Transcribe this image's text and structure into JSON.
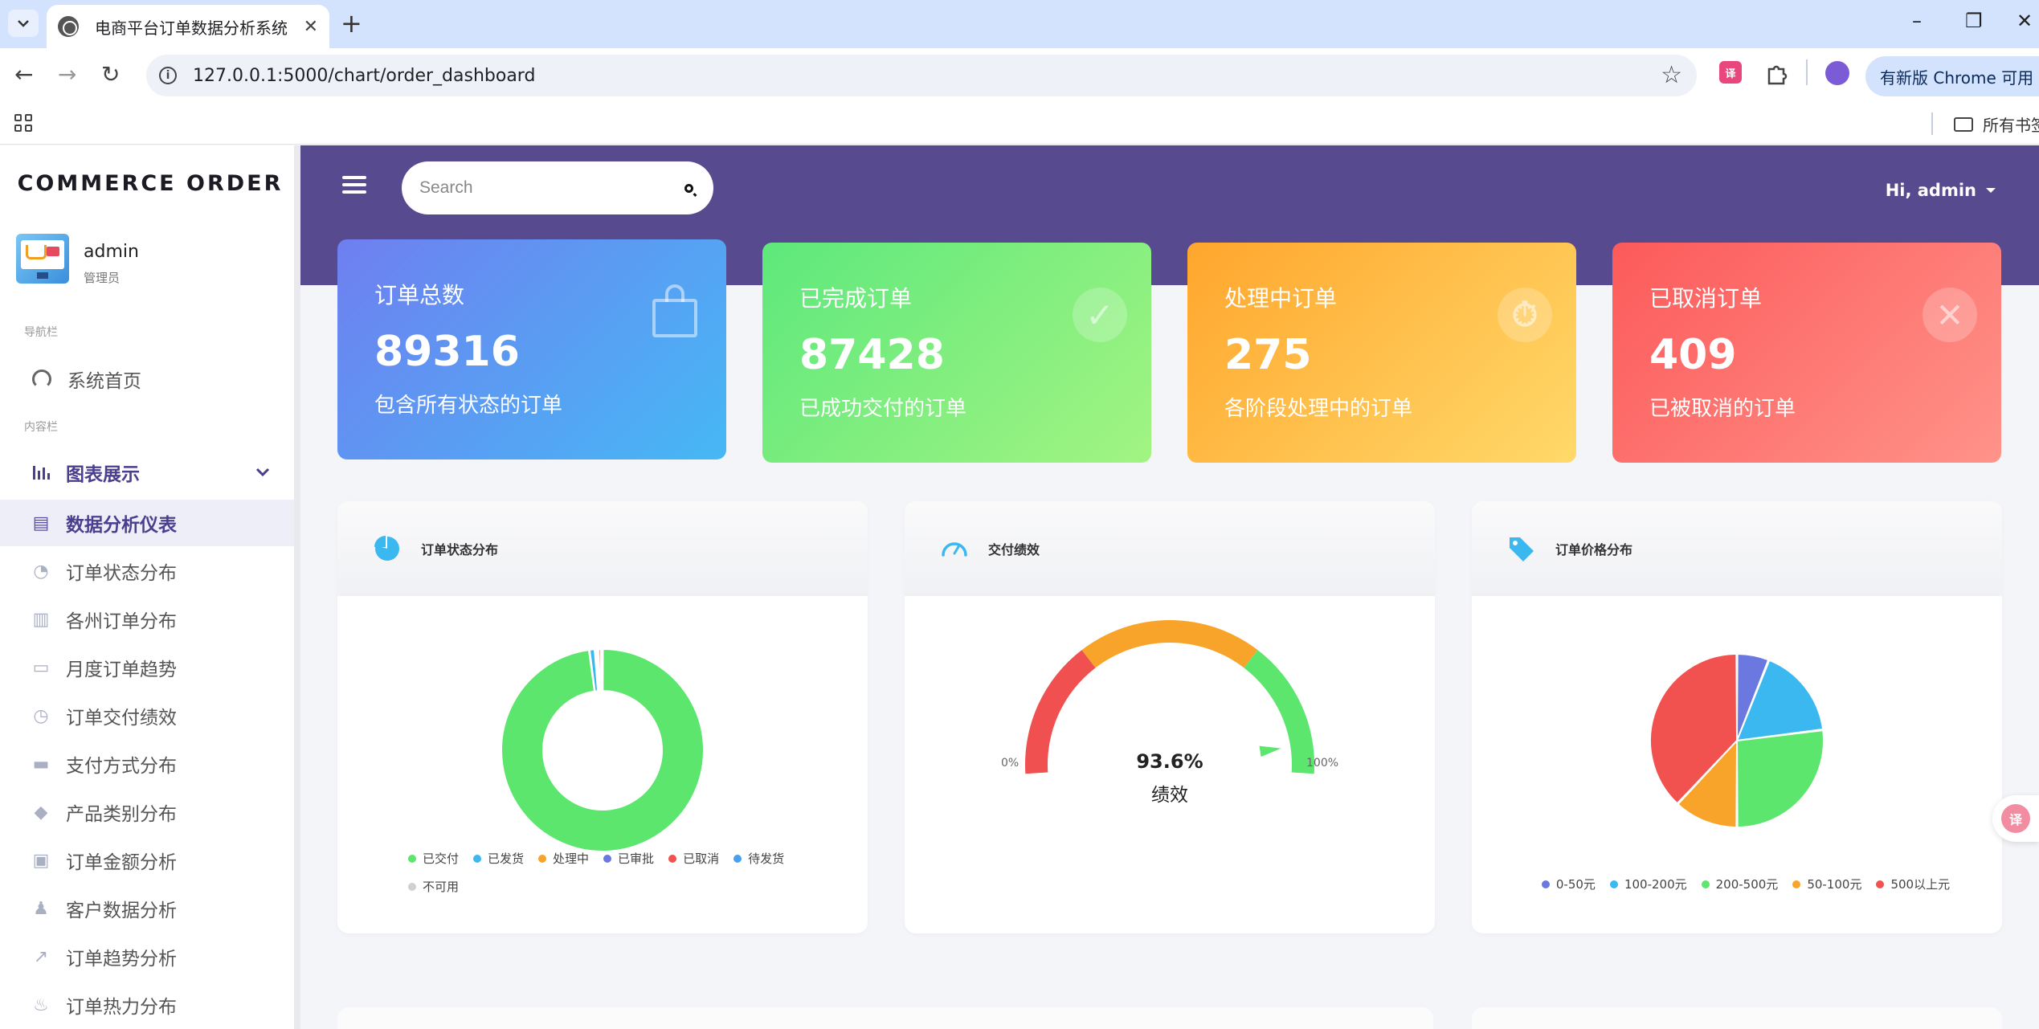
{
  "browser": {
    "tab_title": "电商平台订单数据分析系统",
    "tab_close": "✕",
    "new_tab": "+",
    "url": "127.0.0.1:5000/chart/order_dashboard",
    "update_label": "有新版 Chrome 可用",
    "bookmarks_folder": "所有书签",
    "minimize": "–",
    "restore": "❐",
    "close": "✕"
  },
  "sidebar": {
    "brand": "COMMERCE ORDER",
    "user": {
      "name": "admin",
      "role": "管理员"
    },
    "nav_section": "导航栏",
    "home": {
      "label": "系统首页",
      "icon": "dashboard-gauge-icon"
    },
    "content_section": "内容栏",
    "group": {
      "label": "图表展示",
      "icon": "bar-chart-icon",
      "expanded": true
    },
    "items": [
      {
        "label": "数据分析仪表",
        "icon": "document-icon",
        "active": true
      },
      {
        "label": "订单状态分布",
        "icon": "pie-chart-icon",
        "active": false
      },
      {
        "label": "各州订单分布",
        "icon": "map-icon",
        "active": false
      },
      {
        "label": "月度订单趋势",
        "icon": "calendar-icon",
        "active": false
      },
      {
        "label": "订单交付绩效",
        "icon": "stopwatch-icon",
        "active": false
      },
      {
        "label": "支付方式分布",
        "icon": "credit-card-icon",
        "active": false
      },
      {
        "label": "产品类别分布",
        "icon": "box-icon",
        "active": false
      },
      {
        "label": "订单金额分析",
        "icon": "id-card-icon",
        "active": false
      },
      {
        "label": "客户数据分析",
        "icon": "users-icon",
        "active": false
      },
      {
        "label": "订单趋势分析",
        "icon": "trend-line-icon",
        "active": false
      },
      {
        "label": "订单热力分布",
        "icon": "flame-icon",
        "active": false
      }
    ]
  },
  "topbar": {
    "search_placeholder": "Search",
    "greeting": "Hi, admin"
  },
  "stats": [
    {
      "label": "订单总数",
      "value": "89316",
      "desc": "包含所有状态的订单",
      "icon": "shopping-bag-icon"
    },
    {
      "label": "已完成订单",
      "value": "87428",
      "desc": "已成功交付的订单",
      "icon": "check-icon"
    },
    {
      "label": "处理中订单",
      "value": "275",
      "desc": "各阶段处理中的订单",
      "icon": "timer-icon"
    },
    {
      "label": "已取消订单",
      "value": "409",
      "desc": "已被取消的订单",
      "icon": "x-icon"
    }
  ],
  "panels": {
    "status": {
      "title": "订单状态分布",
      "icon": "pie-chart-icon",
      "chart_data": {
        "type": "pie",
        "donut": true,
        "categories": [
          "已交付",
          "已发货",
          "处理中",
          "已审批",
          "已取消",
          "待发货",
          "不可用"
        ],
        "values": [
          97.9,
          0.9,
          0.3,
          0.2,
          0.45,
          0.15,
          0.1
        ],
        "colors": [
          "#5ce66e",
          "#3bb8f0",
          "#f8a42a",
          "#6a78e0",
          "#f2524f",
          "#4aa0f0",
          "#cfcfd6"
        ]
      }
    },
    "delivery": {
      "title": "交付绩效",
      "icon": "gauge-icon",
      "value_text": "93.6%",
      "value_label": "绩效",
      "min_label": "0%",
      "max_label": "100%",
      "chart_data": {
        "type": "gauge",
        "value": 93.6,
        "range": [
          0,
          100
        ],
        "bands": [
          {
            "to": 30,
            "color": "#f05050"
          },
          {
            "to": 70,
            "color": "#f8a42a"
          },
          {
            "to": 100,
            "color": "#5ce66e"
          }
        ]
      }
    },
    "price": {
      "title": "订单价格分布",
      "icon": "price-tag-icon",
      "chart_data": {
        "type": "pie",
        "categories": [
          "0-50元",
          "100-200元",
          "200-500元",
          "50-100元",
          "500以上元"
        ],
        "values": [
          6,
          17,
          27,
          12,
          38
        ],
        "colors": [
          "#6a78e0",
          "#3bb8f0",
          "#5ce66e",
          "#f8a42a",
          "#f2524f"
        ]
      }
    }
  }
}
